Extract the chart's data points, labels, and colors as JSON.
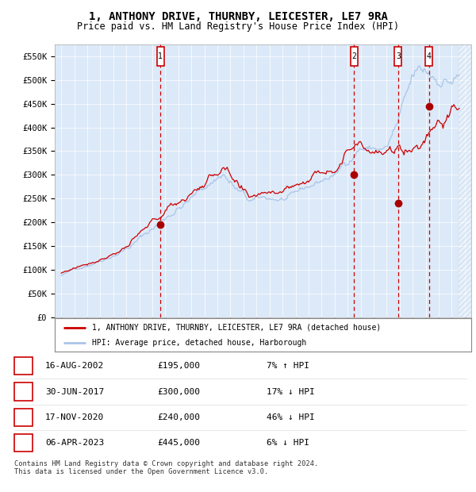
{
  "title": "1, ANTHONY DRIVE, THURNBY, LEICESTER, LE7 9RA",
  "subtitle": "Price paid vs. HM Land Registry's House Price Index (HPI)",
  "ylim": [
    0,
    575000
  ],
  "yticks": [
    0,
    50000,
    100000,
    150000,
    200000,
    250000,
    300000,
    350000,
    400000,
    450000,
    500000,
    550000
  ],
  "ytick_labels": [
    "£0",
    "£50K",
    "£100K",
    "£150K",
    "£200K",
    "£250K",
    "£300K",
    "£350K",
    "£400K",
    "£450K",
    "£500K",
    "£550K"
  ],
  "plot_bg_color": "#dce9f8",
  "hpi_color": "#aac4e8",
  "price_color": "#cc0000",
  "sale_marker_color": "#aa0000",
  "dashed_line_color": "#cc0000",
  "title_fontsize": 10,
  "subtitle_fontsize": 8.5,
  "sales": [
    {
      "label": "1",
      "date_num": 2002.62,
      "price": 195000,
      "note": "7% ↑ HPI",
      "date_str": "16-AUG-2002",
      "price_str": "£195,000"
    },
    {
      "label": "2",
      "date_num": 2017.49,
      "price": 300000,
      "note": "17% ↓ HPI",
      "date_str": "30-JUN-2017",
      "price_str": "£300,000"
    },
    {
      "label": "3",
      "date_num": 2020.88,
      "price": 240000,
      "note": "46% ↓ HPI",
      "date_str": "17-NOV-2020",
      "price_str": "£240,000"
    },
    {
      "label": "4",
      "date_num": 2023.26,
      "price": 445000,
      "note": "6% ↓ HPI",
      "date_str": "06-APR-2023",
      "price_str": "£445,000"
    }
  ],
  "legend_line1": "1, ANTHONY DRIVE, THURNBY, LEICESTER, LE7 9RA (detached house)",
  "legend_line2": "HPI: Average price, detached house, Harborough",
  "footnote1": "Contains HM Land Registry data © Crown copyright and database right 2024.",
  "footnote2": "This data is licensed under the Open Government Licence v3.0.",
  "xlim_start": 1994.5,
  "xlim_end": 2026.5,
  "hatch_start": 2025.5
}
